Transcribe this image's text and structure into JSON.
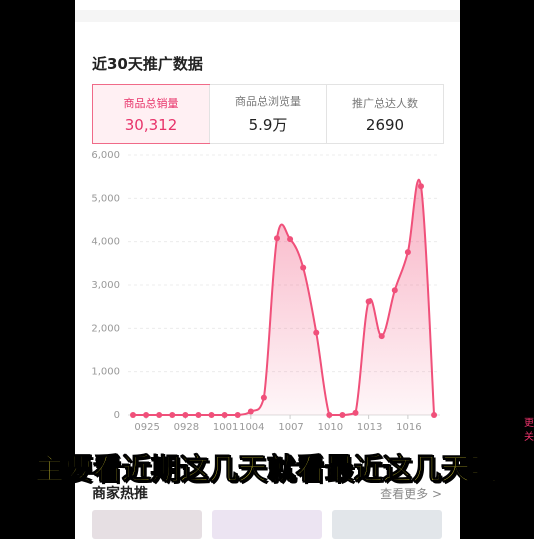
{
  "header": {
    "title": "近30天推广数据"
  },
  "tabs": [
    {
      "label": "商品总销量",
      "value": "30,312"
    },
    {
      "label": "商品总浏览量",
      "value": "5.9万"
    },
    {
      "label": "推广总达人数",
      "value": "2690"
    }
  ],
  "chart_data": {
    "type": "line",
    "categories": [
      null,
      "0925",
      null,
      null,
      "0928",
      null,
      null,
      "1001",
      null,
      "1004",
      null,
      null,
      "1007",
      null,
      null,
      "1010",
      null,
      null,
      "1013",
      null,
      null,
      "1016",
      null,
      null
    ],
    "values": [
      0,
      0,
      0,
      0,
      0,
      0,
      0,
      0,
      0,
      80,
      400,
      4080,
      4060,
      3400,
      1900,
      0,
      0,
      50,
      2620,
      1820,
      2880,
      3760,
      5280,
      0
    ],
    "color": "#f0507a",
    "ylim": [
      0,
      6000
    ],
    "yticks": [
      0,
      {
        "value": 1000,
        "label": "1,000"
      },
      {
        "value": 2000,
        "label": "2,000"
      },
      {
        "value": 3000,
        "label": "3,000"
      },
      {
        "value": 4000,
        "label": "4,000"
      },
      {
        "value": 5000,
        "label": "5,000"
      },
      {
        "value": 6000,
        "label": "6,000"
      }
    ],
    "grid": true
  },
  "section": {
    "title": "商家热推",
    "more": "查看更多 >"
  },
  "subtitle": "主要看近期这几天就看最近这几天啊",
  "side": [
    "更",
    "关"
  ]
}
